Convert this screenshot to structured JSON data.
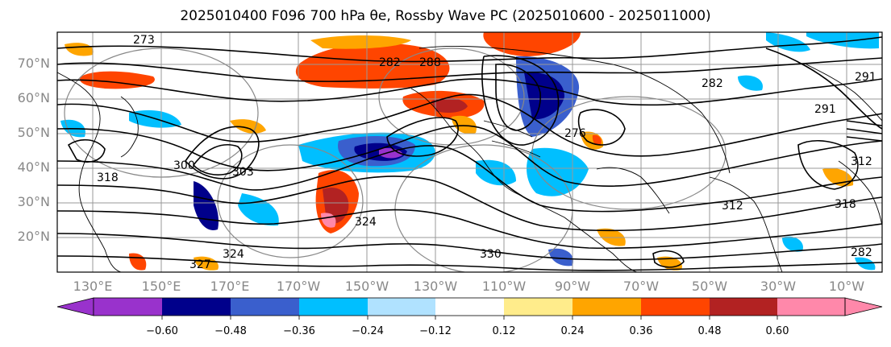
{
  "title": "2025010400 F096 700 hPa θe, Rossby Wave PC (2025010600 - 2025011000)",
  "lat_labels": [
    "70°N",
    "60°N",
    "50°N",
    "40°N",
    "30°N",
    "20°N"
  ],
  "lon_labels": [
    "130°E",
    "150°E",
    "170°E",
    "170°W",
    "150°W",
    "130°W",
    "110°W",
    "90°W",
    "70°W",
    "50°W",
    "30°W",
    "10°W"
  ],
  "contour_labels": [
    "273",
    "282",
    "288",
    "276",
    "291",
    "303",
    "300",
    "312",
    "318",
    "324",
    "327",
    "324",
    "330",
    "318",
    "312",
    "291",
    "282",
    "282"
  ],
  "colorbar": {
    "ticks": [
      "−0.60",
      "−0.48",
      "−0.36",
      "−0.24",
      "−0.12",
      "0.12",
      "0.24",
      "0.36",
      "0.48",
      "0.60"
    ],
    "colors": [
      "#9932CC",
      "#00008B",
      "#3A5FCD",
      "#00BFFF",
      "#B0E2FF",
      "#FFFFFF",
      "#FFEC8B",
      "#FFA500",
      "#FF4500",
      "#B22222",
      "#FF88AA"
    ],
    "under_color": "#9932CC",
    "over_color": "#FF88AA"
  },
  "colors": {
    "purple": "#9932CC",
    "navy": "#00008B",
    "royal": "#3A5FCD",
    "sky": "#00BFFF",
    "pale": "#B0E2FF",
    "yellow": "#FFEC8B",
    "orange": "#FFA500",
    "redorange": "#FF4500",
    "firebrick": "#B22222",
    "pink": "#FF88AA"
  }
}
